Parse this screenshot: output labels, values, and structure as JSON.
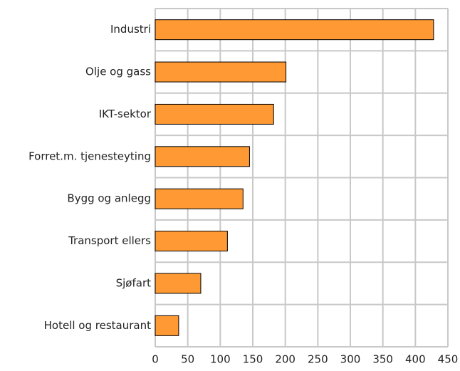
{
  "chart_data": {
    "type": "barh",
    "categories": [
      "Industri",
      "Olje og gass",
      "IKT-sektor",
      "Forret.m. tjenesteyting",
      "Bygg og anlegg",
      "Transport ellers",
      "Sjøfart",
      "Hotell og restaurant"
    ],
    "values": [
      428,
      201,
      182,
      145,
      135,
      111,
      70,
      36
    ],
    "color": "#ff9933",
    "xlim": [
      0,
      450
    ],
    "xticks": [
      0,
      50,
      100,
      150,
      200,
      250,
      300,
      350,
      400,
      450
    ],
    "grid": true
  }
}
